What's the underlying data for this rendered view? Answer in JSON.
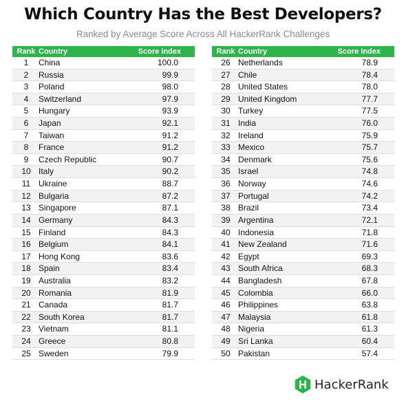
{
  "title": "Which Country Has the Best Developers?",
  "subtitle": "Ranked by Average Score Across All HackerRank Challenges",
  "header": {
    "rank": "Rank",
    "country": "Country",
    "score": "Score Index"
  },
  "colors": {
    "accent": "#2eb44a",
    "row_alt": "#f2f2f2"
  },
  "brand": {
    "name": "HackerRank",
    "icon": "hackerrank-logo-icon"
  },
  "chart_data": {
    "type": "table",
    "title": "Which Country Has the Best Developers?",
    "subtitle": "Ranked by Average Score Across All HackerRank Challenges",
    "columns": [
      "Rank",
      "Country",
      "Score Index"
    ],
    "rows": [
      {
        "rank": "1",
        "country": "China",
        "score": "100.0"
      },
      {
        "rank": "2",
        "country": "Russia",
        "score": "99.9"
      },
      {
        "rank": "3",
        "country": "Poland",
        "score": "98.0"
      },
      {
        "rank": "4",
        "country": "Switzerland",
        "score": "97.9"
      },
      {
        "rank": "5",
        "country": "Hungary",
        "score": "93.9"
      },
      {
        "rank": "6",
        "country": "Japan",
        "score": "92.1"
      },
      {
        "rank": "7",
        "country": "Taiwan",
        "score": "91.2"
      },
      {
        "rank": "8",
        "country": "France",
        "score": "91.2"
      },
      {
        "rank": "9",
        "country": "Czech Republic",
        "score": "90.7"
      },
      {
        "rank": "10",
        "country": "Italy",
        "score": "90.2"
      },
      {
        "rank": "11",
        "country": "Ukraine",
        "score": "88.7"
      },
      {
        "rank": "12",
        "country": "Bulgaria",
        "score": "87.2"
      },
      {
        "rank": "13",
        "country": "Singapore",
        "score": "87.1"
      },
      {
        "rank": "14",
        "country": "Germany",
        "score": "84.3"
      },
      {
        "rank": "15",
        "country": "Finland",
        "score": "84.3"
      },
      {
        "rank": "16",
        "country": "Belgium",
        "score": "84.1"
      },
      {
        "rank": "17",
        "country": "Hong Kong",
        "score": "83.6"
      },
      {
        "rank": "18",
        "country": "Spain",
        "score": "83.4"
      },
      {
        "rank": "19",
        "country": "Australia",
        "score": "83.2"
      },
      {
        "rank": "20",
        "country": "Romania",
        "score": "81.9"
      },
      {
        "rank": "21",
        "country": "Canada",
        "score": "81.7"
      },
      {
        "rank": "22",
        "country": "South Korea",
        "score": "81.7"
      },
      {
        "rank": "23",
        "country": "Vietnam",
        "score": "81.1"
      },
      {
        "rank": "24",
        "country": "Greece",
        "score": "80.8"
      },
      {
        "rank": "25",
        "country": "Sweden",
        "score": "79.9"
      },
      {
        "rank": "26",
        "country": "Netherlands",
        "score": "78.9"
      },
      {
        "rank": "27",
        "country": "Chile",
        "score": "78.4"
      },
      {
        "rank": "28",
        "country": "United States",
        "score": "78.0"
      },
      {
        "rank": "29",
        "country": "United Kingdom",
        "score": "77.7"
      },
      {
        "rank": "30",
        "country": "Turkey",
        "score": "77.5"
      },
      {
        "rank": "31",
        "country": "India",
        "score": "76.0"
      },
      {
        "rank": "32",
        "country": "Ireland",
        "score": "75.9"
      },
      {
        "rank": "33",
        "country": "Mexico",
        "score": "75.7"
      },
      {
        "rank": "34",
        "country": "Denmark",
        "score": "75.6"
      },
      {
        "rank": "35",
        "country": "Israel",
        "score": "74.8"
      },
      {
        "rank": "36",
        "country": "Norway",
        "score": "74.6"
      },
      {
        "rank": "37",
        "country": "Portugal",
        "score": "74.2"
      },
      {
        "rank": "38",
        "country": "Brazil",
        "score": "73.4"
      },
      {
        "rank": "39",
        "country": "Argentina",
        "score": "72.1"
      },
      {
        "rank": "40",
        "country": "Indonesia",
        "score": "71.8"
      },
      {
        "rank": "41",
        "country": "New Zealand",
        "score": "71.6"
      },
      {
        "rank": "42",
        "country": "Egypt",
        "score": "69.3"
      },
      {
        "rank": "43",
        "country": "South Africa",
        "score": "68.3"
      },
      {
        "rank": "44",
        "country": "Bangladesh",
        "score": "67.8"
      },
      {
        "rank": "45",
        "country": "Colombia",
        "score": "66.0"
      },
      {
        "rank": "46",
        "country": "Philippines",
        "score": "63.8"
      },
      {
        "rank": "47",
        "country": "Malaysia",
        "score": "61.8"
      },
      {
        "rank": "48",
        "country": "Nigeria",
        "score": "61.3"
      },
      {
        "rank": "49",
        "country": "Sri Lanka",
        "score": "60.4"
      },
      {
        "rank": "50",
        "country": "Pakistan",
        "score": "57.4"
      }
    ]
  }
}
